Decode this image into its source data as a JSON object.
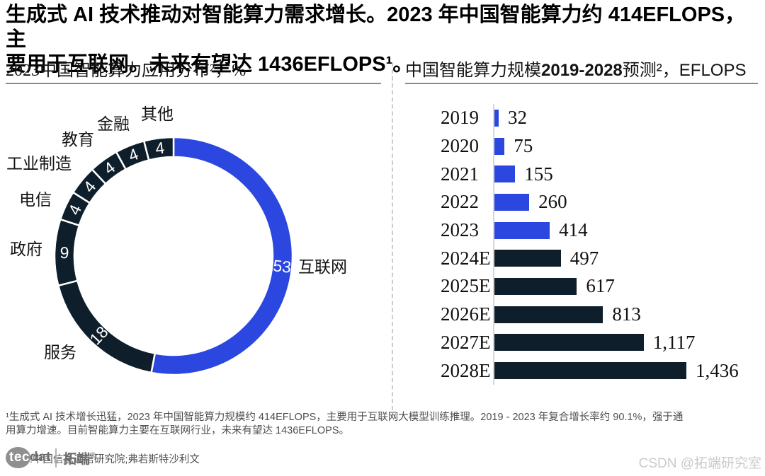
{
  "colors": {
    "accent_blue": "#2B47E0",
    "dark_navy": "#0E1F2B"
  },
  "header": {
    "title": "生成式 AI 技术推动对智能算力需求增长。2023 年中国智能算力约 414EFLOPS，主\n要用于互联网。未来有望达 1436EFLOPS¹。"
  },
  "left_panel": {
    "title": "2023中国智能算力应用分布²，%"
  },
  "right_panel": {
    "title_prefix": "中国智能算力规模",
    "title_range": "2019-2028",
    "title_suffix": "预测²，EFLOPS"
  },
  "chart_data": [
    {
      "type": "pie",
      "subtype": "donut",
      "title": "2023中国智能算力应用分布²，%",
      "unit": "%",
      "direction": "clockwise",
      "start_angle_deg": 0,
      "segments": [
        {
          "label": "互联网",
          "value": 53,
          "color": "accent_blue"
        },
        {
          "label": "服务",
          "value": 18,
          "color": "dark_navy"
        },
        {
          "label": "政府",
          "value": 9,
          "color": "dark_navy"
        },
        {
          "label": "电信",
          "value": 4,
          "color": "dark_navy"
        },
        {
          "label": "工业制造",
          "value": 4,
          "color": "dark_navy"
        },
        {
          "label": "教育",
          "value": 4,
          "color": "dark_navy"
        },
        {
          "label": "金融",
          "value": 4,
          "color": "dark_navy"
        },
        {
          "label": "其他",
          "value": 4,
          "color": "dark_navy"
        }
      ]
    },
    {
      "type": "bar",
      "orientation": "horizontal",
      "title": "中国智能算力规模2019-2028预测²，EFLOPS",
      "unit": "EFLOPS",
      "categories": [
        "2019",
        "2020",
        "2021",
        "2022",
        "2023",
        "2024E",
        "2025E",
        "2026E",
        "2027E",
        "2028E"
      ],
      "values": [
        32,
        75,
        155,
        260,
        414,
        497,
        617,
        813,
        1117,
        1436
      ],
      "value_labels": [
        "32",
        "75",
        "155",
        "260",
        "414",
        "497",
        "617",
        "813",
        "1,117",
        "1,436"
      ],
      "bar_colors": [
        "accent_blue",
        "accent_blue",
        "accent_blue",
        "accent_blue",
        "accent_blue",
        "dark_navy",
        "dark_navy",
        "dark_navy",
        "dark_navy",
        "dark_navy"
      ],
      "xlim": [
        0,
        1500
      ],
      "grid": false,
      "legend": false
    }
  ],
  "footnotes": {
    "note1": "¹生成式 AI 技术增长迅猛，2023 年中国智能算力规模约 414EFLOPS，主要用于互联网大模型训练推理。2019 - 2023 年复合增长率约 90.1%，强于通\n用算力增速。目前智能算力主要在互联网行业，未来有望达 1436EFLOPS。",
    "note2": "²来源:中国信息通信研究院;弗若斯特沙利文"
  },
  "logo": {
    "tec": "tec",
    "dat": "dat",
    "cn": "拓端",
    "registered": "®"
  },
  "watermark": "CSDN @拓端研究室"
}
